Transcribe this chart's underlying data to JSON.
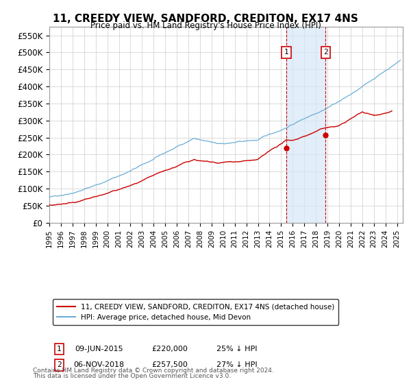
{
  "title": "11, CREEDY VIEW, SANDFORD, CREDITON, EX17 4NS",
  "subtitle": "Price paid vs. HM Land Registry's House Price Index (HPI)",
  "ylabel_ticks": [
    "£0",
    "£50K",
    "£100K",
    "£150K",
    "£200K",
    "£250K",
    "£300K",
    "£350K",
    "£400K",
    "£450K",
    "£500K",
    "£550K"
  ],
  "ytick_values": [
    0,
    50000,
    100000,
    150000,
    200000,
    250000,
    300000,
    350000,
    400000,
    450000,
    500000,
    550000
  ],
  "ylim": [
    0,
    575000
  ],
  "xlim_start": 1995.0,
  "xlim_end": 2025.5,
  "legend_line1": "11, CREEDY VIEW, SANDFORD, CREDITON, EX17 4NS (detached house)",
  "legend_line2": "HPI: Average price, detached house, Mid Devon",
  "sale1_label": "1",
  "sale1_date": "09-JUN-2015",
  "sale1_price": "£220,000",
  "sale1_pct": "25% ↓ HPI",
  "sale1_year": 2015.44,
  "sale1_value": 220000,
  "sale2_label": "2",
  "sale2_date": "06-NOV-2018",
  "sale2_price": "£257,500",
  "sale2_pct": "27% ↓ HPI",
  "sale2_year": 2018.85,
  "sale2_value": 257500,
  "hpi_color": "#6baed6",
  "price_color": "#cc0000",
  "marker_color": "#cc0000",
  "sale_box_color": "#cc0000",
  "shade_color": "#d6e8f7",
  "dashed_color": "#cc0000",
  "grid_color": "#cccccc",
  "bg_color": "#ffffff",
  "footnote1": "Contains HM Land Registry data © Crown copyright and database right 2024.",
  "footnote2": "This data is licensed under the Open Government Licence v3.0."
}
